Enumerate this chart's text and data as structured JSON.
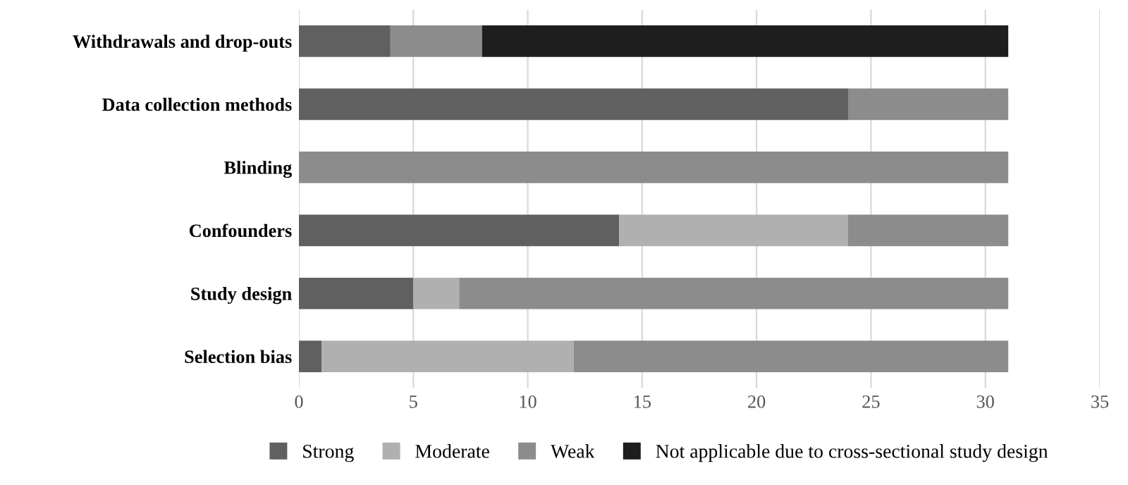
{
  "chart_data": {
    "type": "bar",
    "orientation": "horizontal",
    "stacked": true,
    "categories": [
      "Withdrawals and drop-outs",
      "Data collection methods",
      "Blinding",
      "Confounders",
      "Study design",
      "Selection bias"
    ],
    "series": [
      {
        "name": "Strong",
        "color": "#606060",
        "values": [
          4,
          24,
          0,
          14,
          5,
          1
        ]
      },
      {
        "name": "Moderate",
        "color": "#b0b0b0",
        "values": [
          0,
          0,
          0,
          10,
          2,
          11
        ]
      },
      {
        "name": "Weak",
        "color": "#8c8c8c",
        "values": [
          4,
          7,
          31,
          7,
          24,
          19
        ]
      },
      {
        "name": "Not applicable due to cross-sectional study design",
        "color": "#1e1e1e",
        "values": [
          23,
          0,
          0,
          0,
          0,
          0
        ]
      }
    ],
    "xlim": [
      0,
      35
    ],
    "xticks": [
      0,
      5,
      10,
      15,
      20,
      25,
      30,
      35
    ],
    "grid": "x",
    "legend": "bottom"
  }
}
